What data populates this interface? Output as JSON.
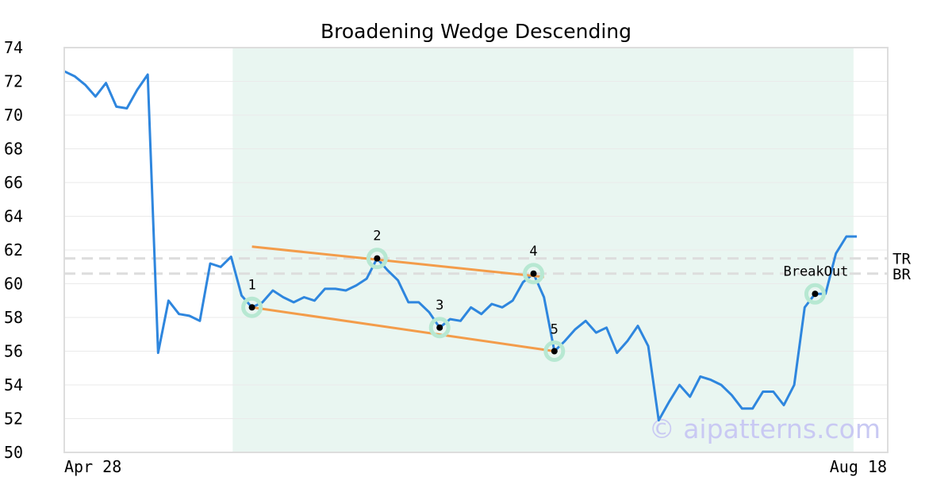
{
  "chart_data": {
    "type": "line",
    "title": "Broadening Wedge Descending",
    "ylim": [
      50,
      74
    ],
    "yticks": [
      "50",
      "52",
      "54",
      "56",
      "58",
      "60",
      "62",
      "64",
      "66",
      "68",
      "70",
      "72",
      "74"
    ],
    "xtick_labels": [
      "Apr 28",
      "Aug 18"
    ],
    "grid": "horizontal",
    "colors": {
      "price": "#2e86de",
      "trend": "#f39c4a",
      "highlight": "#e9f6f1",
      "marker_ring": "#b7e8d2",
      "level": "#dddddd",
      "watermark": "#c9c9f3",
      "frame": "#dddddd"
    },
    "price": [
      72.6,
      72.3,
      71.8,
      71.1,
      71.9,
      70.5,
      70.4,
      71.5,
      72.4,
      55.9,
      59.0,
      58.2,
      58.1,
      57.8,
      61.2,
      61.0,
      61.6,
      59.3,
      58.6,
      58.9,
      59.6,
      59.2,
      58.9,
      59.2,
      59.0,
      59.7,
      59.7,
      59.6,
      59.9,
      60.3,
      61.5,
      60.8,
      60.2,
      58.9,
      58.9,
      58.3,
      57.4,
      57.9,
      57.8,
      58.6,
      58.2,
      58.8,
      58.6,
      59.0,
      60.1,
      60.6,
      59.2,
      56.0,
      56.6,
      57.3,
      57.8,
      57.1,
      57.4,
      55.9,
      56.6,
      57.5,
      56.3,
      51.9,
      53.0,
      54.0,
      53.3,
      54.5,
      54.3,
      54.0,
      53.4,
      52.6,
      52.6,
      53.6,
      53.6,
      52.8,
      54.0,
      58.6,
      59.4,
      59.4,
      61.8,
      62.8,
      62.8
    ],
    "highlight_range": [
      16,
      75
    ],
    "levels": [
      {
        "name": "TR",
        "value": 61.5
      },
      {
        "name": "BR",
        "value": 60.6
      }
    ],
    "points": [
      {
        "label": "1",
        "index": 18,
        "value": 58.6
      },
      {
        "label": "2",
        "index": 30,
        "value": 61.5
      },
      {
        "label": "3",
        "index": 36,
        "value": 57.4
      },
      {
        "label": "4",
        "index": 45,
        "value": 60.6
      },
      {
        "label": "5",
        "index": 47,
        "value": 56.0
      },
      {
        "label": "BreakOut",
        "index": 72,
        "value": 59.4
      }
    ],
    "trendlines": [
      {
        "name": "upper",
        "from": {
          "index": 18,
          "value": 62.2
        },
        "to": {
          "index": 46,
          "value": 60.4
        }
      },
      {
        "name": "lower",
        "from": {
          "index": 18,
          "value": 58.6
        },
        "to": {
          "index": 47,
          "value": 56.0
        }
      }
    ]
  },
  "watermark": "© aipatterns.com"
}
